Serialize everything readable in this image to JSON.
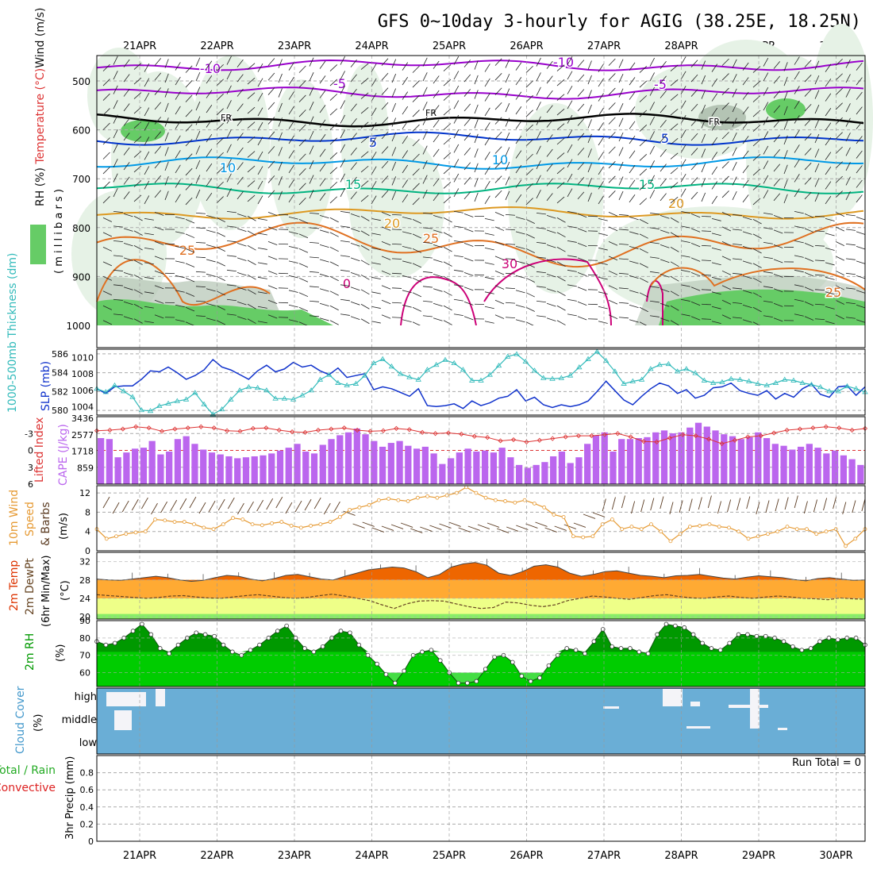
{
  "title": "GFS 0~10day 3-hourly for AGIG (38.25E, 18.25N)",
  "date_labels": [
    "21APR",
    "22APR",
    "23APR",
    "24APR",
    "25APR",
    "26APR",
    "27APR",
    "28APR",
    "29APR",
    "30APR"
  ],
  "run_total_label": "Run Total = 0",
  "colors": {
    "rh_light": "#e6f2e6",
    "rh_green": "#66cc66",
    "rh_grey": "#b4c4b4",
    "temp_neg10": "#9900cc",
    "temp_fr": "#000000",
    "temp_pos5": "#0033cc",
    "temp_10": "#0099e6",
    "temp_15": "#00b380",
    "temp_20": "#dd9922",
    "temp_25": "#e07020",
    "temp_30": "#cc0077",
    "thickness": "#1133cc",
    "slp": "#33bbbb",
    "cape": "#bb66ee",
    "lifted": "#dd3333",
    "wind_speed": "#e69a33",
    "barbs": "#5a3a20",
    "t2m_dark": "#ee6600",
    "t2m_mid": "#ffaa33",
    "t2m_light": "#eeff88",
    "rh2m_light": "#00cc00",
    "rh2m_dark": "#009900",
    "cloud_blue": "#6aaed6",
    "precip_convective": "#dd2222",
    "precip_total": "#22aa22"
  },
  "chart_data": [
    {
      "type": "heatmap",
      "panel": "upper-air",
      "ylabel_parts": [
        "RH (%)",
        "Temperature (°C)",
        "Wind (m/s)"
      ],
      "ylabel_unit": "( m i l l i b a r s )",
      "y_ticks": [
        500,
        600,
        700,
        800,
        900,
        1000
      ],
      "ylim": [
        450,
        1000
      ],
      "contours": [
        {
          "label": "-10",
          "pressure": 468
        },
        {
          "label": "-5",
          "pressure": 525
        },
        {
          "label": "FR",
          "pressure": 580
        },
        {
          "label": "5",
          "pressure": 618
        },
        {
          "label": "10",
          "pressure": 668
        },
        {
          "label": "15",
          "pressure": 720
        },
        {
          "label": "20",
          "pressure": 770
        },
        {
          "label": "25",
          "pressure": 835
        },
        {
          "label": "30",
          "pressure": 900
        }
      ],
      "contour_labels_shown": [
        "-10",
        "-5",
        "FR",
        "5",
        "10",
        "15",
        "20",
        "25",
        "30",
        "0"
      ]
    },
    {
      "type": "line",
      "panel": "thickness-slp",
      "ylabel_left": "1000-500mb Thickness (dm)",
      "ylabel_right": "SLP (mb)",
      "y_ticks_left": [
        580,
        582,
        584,
        586
      ],
      "y_ticks_right": [
        1004,
        1006,
        1008,
        1010
      ],
      "ylim_left": [
        579.5,
        586.5
      ],
      "series": [
        {
          "name": "1000-500mb Thickness (dm)",
          "values": [
            582.3,
            581.8,
            582.5,
            582.6,
            582.6,
            583.3,
            584.2,
            584.1,
            584.6,
            584.0,
            583.3,
            583.7,
            584.3,
            585.4,
            584.6,
            584.3,
            583.8,
            583.3,
            584.2,
            584.8,
            584.1,
            584.4,
            585.1,
            584.6,
            584.8,
            584.2,
            583.8,
            584.5,
            583.5,
            583.7,
            583.9,
            582.2,
            582.5,
            582.3,
            581.9,
            581.5,
            582.3,
            580.5,
            580.4,
            580.5,
            580.7,
            580.2,
            581.0,
            580.5,
            580.8,
            581.3,
            581.5,
            582.2,
            581.0,
            581.4,
            580.6,
            580.3,
            580.6,
            580.4,
            580.6,
            581.0,
            582.0,
            583.1,
            582.1,
            581.1,
            580.6,
            581.5,
            582.3,
            582.9,
            582.6,
            581.8,
            582.2,
            581.3,
            581.6,
            582.4,
            582.5,
            582.9,
            582.1,
            581.8,
            581.6,
            582.1,
            581.2,
            581.8,
            581.4,
            582.3,
            582.8,
            581.7,
            581.4,
            582.5,
            582.6,
            581.6,
            582.5
          ]
        },
        {
          "name": "SLP (mb)",
          "values": [
            1006.2,
            1005.8,
            1006.6,
            1005.9,
            1005.2,
            1003.6,
            1003.5,
            1004.1,
            1004.4,
            1004.7,
            1004.9,
            1005.7,
            1004.3,
            1003.1,
            1003.7,
            1004.9,
            1006.0,
            1006.4,
            1006.3,
            1006.0,
            1005.0,
            1005.0,
            1004.9,
            1005.4,
            1006.0,
            1007.3,
            1007.9,
            1006.9,
            1006.6,
            1006.8,
            1007.8,
            1009.3,
            1009.8,
            1008.9,
            1008.0,
            1007.6,
            1007.3,
            1008.5,
            1009.1,
            1009.7,
            1009.3,
            1008.5,
            1007.2,
            1007.2,
            1007.9,
            1009.0,
            1010.1,
            1010.4,
            1009.5,
            1008.4,
            1007.5,
            1007.4,
            1007.5,
            1007.8,
            1008.8,
            1009.8,
            1010.7,
            1009.6,
            1008.3,
            1006.8,
            1007.1,
            1007.3,
            1008.6,
            1009.1,
            1009.2,
            1008.3,
            1008.6,
            1008.1,
            1007.2,
            1006.9,
            1007.0,
            1007.4,
            1007.3,
            1007.1,
            1006.8,
            1006.6,
            1006.9,
            1007.3,
            1007.2,
            1006.9,
            1006.7,
            1006.4,
            1005.9,
            1005.9,
            1006.5,
            1006.2,
            1005.8
          ]
        }
      ]
    },
    {
      "type": "bar",
      "panel": "cape-lifted",
      "ylabel_left": "Lifted Index",
      "ylabel_right": "CAPE (J/kg)",
      "y_ticks_left": [
        -3,
        0,
        3,
        6
      ],
      "y_ticks_right": [
        859,
        1718,
        2577,
        3436
      ],
      "series": [
        {
          "name": "CAPE (J/kg)",
          "values": [
            2400,
            2350,
            1400,
            1650,
            1850,
            1900,
            2250,
            1550,
            1700,
            2350,
            2500,
            2100,
            1800,
            1650,
            1550,
            1450,
            1350,
            1400,
            1450,
            1500,
            1600,
            1750,
            1900,
            2100,
            1700,
            1600,
            2050,
            2350,
            2550,
            2700,
            2900,
            2600,
            2250,
            1950,
            2150,
            2250,
            2000,
            1850,
            1950,
            1600,
            1050,
            1350,
            1650,
            1850,
            1700,
            1750,
            1650,
            1900,
            1400,
            1000,
            850,
            1000,
            1150,
            1450,
            1700,
            1100,
            1400,
            2100,
            2550,
            2700,
            1700,
            2350,
            2350,
            2400,
            2450,
            2700,
            2800,
            2650,
            2700,
            2950,
            3200,
            3000,
            2800,
            2600,
            2500,
            2350,
            2450,
            2700,
            2400,
            2100,
            2000,
            1800,
            1950,
            2100,
            1900,
            1600,
            1750,
            1500,
            1300,
            1000
          ]
        },
        {
          "name": "Lifted Index",
          "values": [
            -3.5,
            -3.6,
            -3.8,
            -4.2,
            -4.0,
            -3.4,
            -3.8,
            -4.0,
            -4.2,
            -4.0,
            -3.5,
            -3.4,
            -3.9,
            -4.0,
            -3.6,
            -3.3,
            -3.2,
            -3.6,
            -3.8,
            -4.0,
            -3.6,
            -3.4,
            -3.5,
            -3.9,
            -3.7,
            -3.2,
            -3.0,
            -3.1,
            -2.9,
            -2.5,
            -2.3,
            -1.7,
            -1.9,
            -1.5,
            -1.8,
            -2.1,
            -2.4,
            -2.6,
            -2.6,
            -2.8,
            -3.0,
            -2.4,
            -1.6,
            -1.5,
            -2.2,
            -2.8,
            -2.6,
            -2.0,
            -1.2,
            -1.8,
            -2.4,
            -2.6,
            -3.1,
            -3.6,
            -3.8,
            -4.0,
            -4.2,
            -4.0,
            -3.6,
            -3.9
          ]
        }
      ]
    },
    {
      "type": "line",
      "panel": "wind10m",
      "ylabel": "10m Wind Speed (m/s) & Barbs",
      "y_ticks": [
        0,
        4,
        8,
        12
      ],
      "ylim": [
        0,
        13.5
      ],
      "values": [
        4.5,
        2.5,
        3.0,
        3.5,
        3.8,
        4.0,
        6.5,
        6.3,
        6.0,
        6.0,
        5.5,
        4.8,
        4.5,
        5.5,
        6.8,
        6.5,
        5.5,
        5.3,
        5.7,
        6.0,
        5.2,
        4.8,
        5.2,
        5.5,
        6.0,
        7.0,
        8.5,
        9.0,
        9.5,
        10.5,
        10.8,
        10.5,
        10.3,
        11.0,
        11.3,
        11.0,
        11.5,
        12.0,
        13.2,
        12.0,
        11.0,
        10.5,
        10.3,
        10.0,
        10.5,
        9.8,
        9.0,
        7.5,
        7.0,
        3.0,
        2.8,
        3.0,
        5.5,
        6.5,
        4.5,
        5.0,
        4.5,
        5.5,
        4.0,
        2.0,
        3.5,
        5.0,
        5.2,
        5.5,
        5.0,
        4.8,
        4.0,
        2.5,
        3.0,
        3.5,
        4.0,
        5.0,
        4.5,
        4.5,
        3.5,
        4.0,
        4.5,
        1.0,
        2.5,
        4.5
      ]
    },
    {
      "type": "area",
      "panel": "t2m",
      "ylabel": "2m Temp 2m DewPt (6hr Min/Max) (°C)",
      "y_ticks": [
        20,
        24,
        28,
        32
      ],
      "ylim": [
        19.5,
        34
      ],
      "series": [
        {
          "name": "2m Temp",
          "values": [
            28.2,
            28.0,
            27.9,
            28.2,
            28.5,
            28.8,
            28.5,
            28.0,
            27.7,
            27.9,
            28.5,
            29.0,
            28.8,
            28.2,
            27.8,
            28.3,
            29.0,
            29.2,
            28.7,
            28.2,
            28.0,
            28.8,
            29.5,
            30.2,
            30.5,
            30.8,
            30.6,
            29.8,
            28.5,
            29.2,
            30.8,
            31.5,
            31.8,
            31.2,
            29.5,
            29.0,
            29.8,
            31.0,
            31.3,
            30.8,
            29.5,
            28.8,
            29.2,
            29.8,
            30.0,
            29.5,
            29.0,
            28.8,
            28.5,
            28.9,
            29.0,
            29.2,
            28.8,
            28.4,
            28.2,
            28.6,
            28.9,
            28.7,
            28.5,
            28.1,
            27.8,
            28.3,
            28.5,
            28.2,
            27.9,
            28.0
          ]
        },
        {
          "name": "2m DewPt",
          "values": [
            24.8,
            24.6,
            24.4,
            24.2,
            24.0,
            24.2,
            24.5,
            24.6,
            24.3,
            24.1,
            24.0,
            24.3,
            24.6,
            24.8,
            24.5,
            24.2,
            24.0,
            24.2,
            24.6,
            24.9,
            24.5,
            24.0,
            23.5,
            22.6,
            21.8,
            22.8,
            23.4,
            23.5,
            23.4,
            22.8,
            22.2,
            21.8,
            22.0,
            23.2,
            23.0,
            22.5,
            22.2,
            22.6,
            23.5,
            24.0,
            24.5,
            24.3,
            24.0,
            23.8,
            24.2,
            24.6,
            24.8,
            24.4,
            24.1,
            24.0,
            24.3,
            24.5,
            24.2,
            24.0,
            24.3,
            24.5,
            24.3,
            24.0,
            23.9,
            23.7,
            24.1,
            23.9,
            23.8
          ]
        }
      ]
    },
    {
      "type": "area",
      "panel": "rh2m",
      "ylabel": "2m RH (%)",
      "y_ticks": [
        60,
        70,
        80,
        90
      ],
      "ylim": [
        52,
        90
      ],
      "values": [
        78,
        76,
        77,
        80,
        84,
        88,
        82,
        74,
        71,
        76,
        80,
        83,
        82,
        81,
        76,
        72,
        70,
        73,
        76,
        80,
        84,
        87,
        80,
        74,
        72,
        75,
        80,
        84,
        83,
        76,
        70,
        65,
        59,
        54,
        61,
        70,
        72,
        73,
        67,
        60,
        54,
        54,
        55,
        62,
        69,
        70,
        66,
        58,
        55,
        57,
        64,
        70,
        74,
        73,
        71,
        78,
        85,
        75,
        74,
        74,
        72,
        71,
        82,
        88,
        87,
        86,
        82,
        77,
        74,
        73,
        77,
        82,
        82,
        81,
        81,
        80,
        78,
        75,
        73,
        74,
        78,
        80,
        79,
        80,
        80,
        76
      ]
    },
    {
      "type": "heatmap",
      "panel": "cloud",
      "ylabel": "Cloud Cover (%)",
      "layers": [
        "high",
        "middle",
        "low"
      ]
    },
    {
      "type": "bar",
      "panel": "precip",
      "ylabel": "3hr Precip (mm)",
      "legend": [
        "Total / Rain",
        "Convective"
      ],
      "y_ticks": [
        0,
        0.2,
        0.4,
        0.6,
        0.8
      ],
      "ylim": [
        0,
        1.0
      ],
      "values": []
    }
  ]
}
